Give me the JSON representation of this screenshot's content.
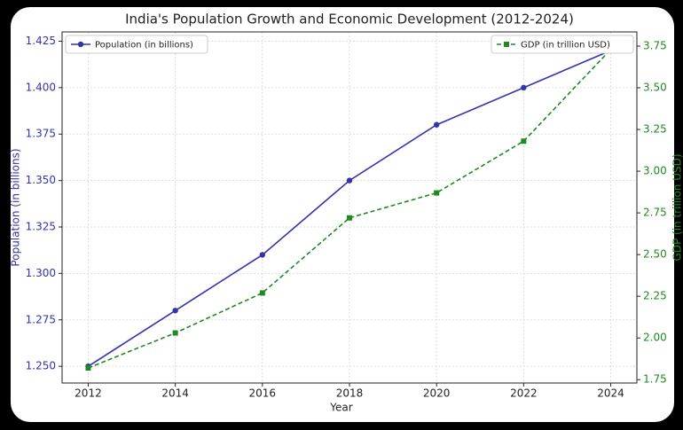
{
  "chart_data": {
    "type": "line",
    "title": "India's Population Growth and Economic Development (2012-2024)",
    "x_label": "Year",
    "y_label": "Population (in billions)",
    "y2_label": "GDP (in trillion USD)",
    "x": [
      2012,
      2014,
      2016,
      2018,
      2020,
      2022,
      2024
    ],
    "series": [
      {
        "name": "Population (in billions)",
        "color": "#3333aa",
        "values": [
          1.25,
          1.28,
          1.31,
          1.35,
          1.38,
          1.4,
          1.42
        ]
      },
      {
        "name": "GDP (in trillion USD)",
        "color": "#1f8a1f",
        "axis": "y2",
        "values": [
          1.82,
          2.03,
          2.27,
          2.72,
          2.87,
          3.18,
          3.73
        ]
      }
    ],
    "xlim": [
      2011.4,
      2024.6
    ],
    "xticks": [
      2012,
      2014,
      2016,
      2018,
      2020,
      2022,
      2024
    ],
    "ylim": [
      1.241,
      1.43
    ],
    "yticks": [
      {
        "value": 1.25,
        "label": "1.250"
      },
      {
        "value": 1.275,
        "label": "1.275"
      },
      {
        "value": 1.3,
        "label": "1.300"
      },
      {
        "value": 1.325,
        "label": "1.325"
      },
      {
        "value": 1.35,
        "label": "1.350"
      },
      {
        "value": 1.375,
        "label": "1.375"
      },
      {
        "value": 1.4,
        "label": "1.400"
      },
      {
        "value": 1.425,
        "label": "1.425"
      }
    ],
    "y2lim": [
      1.73,
      3.835
    ],
    "y2ticks": [
      {
        "value": 1.75,
        "label": "1.75"
      },
      {
        "value": 2.0,
        "label": "2.00"
      },
      {
        "value": 2.25,
        "label": "2.25"
      },
      {
        "value": 2.5,
        "label": "2.50"
      },
      {
        "value": 2.75,
        "label": "2.75"
      },
      {
        "value": 3.0,
        "label": "3.00"
      },
      {
        "value": 3.25,
        "label": "3.25"
      },
      {
        "value": 3.5,
        "label": "3.50"
      },
      {
        "value": 3.75,
        "label": "3.75"
      }
    ],
    "grid": true
  }
}
